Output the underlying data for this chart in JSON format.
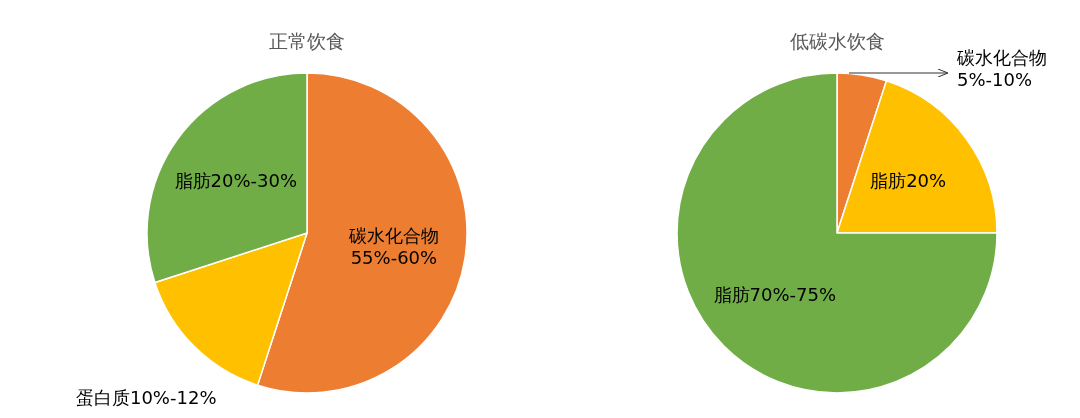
{
  "chart_data": [
    {
      "type": "pie",
      "title": "正常饮食",
      "categories": [
        "碳水化合物 55%-60%",
        "蛋白质10%-12%",
        "脂肪20%-30%"
      ],
      "values": [
        55,
        15,
        30
      ],
      "colors": [
        "#ed7d31",
        "#ffc000",
        "#70ad47"
      ]
    },
    {
      "type": "pie",
      "title": "低碳水饮食",
      "categories": [
        "碳水化合物 5%-10%",
        "脂肪20%",
        "脂肪70%-75%"
      ],
      "values": [
        5,
        20,
        75
      ],
      "colors": [
        "#ed7d31",
        "#ffc000",
        "#70ad47"
      ]
    }
  ]
}
